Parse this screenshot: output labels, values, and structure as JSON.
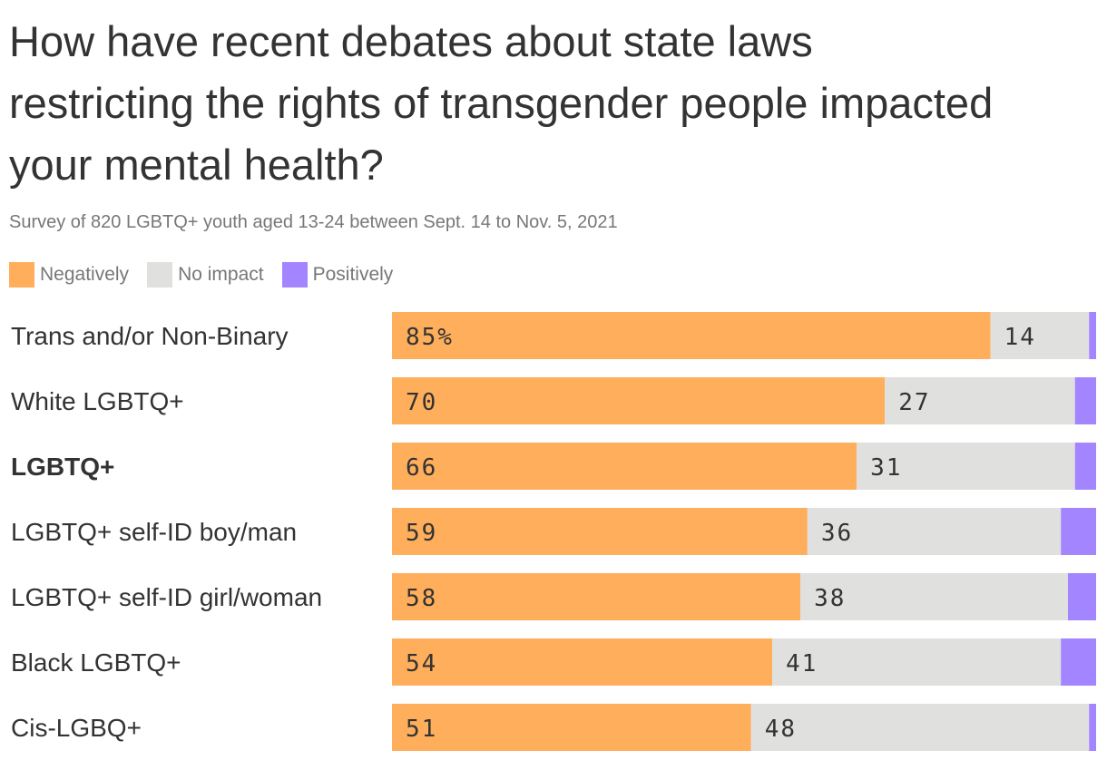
{
  "title": "How have recent debates about state laws restricting the rights of transgender people impacted your mental health?",
  "subtitle": "Survey of 820 LGBTQ+ youth aged 13-24 between Sept. 14 to Nov. 5, 2021",
  "legend": [
    {
      "label": "Negatively",
      "color": "#FFAE5C"
    },
    {
      "label": "No impact",
      "color": "#E0E0DF"
    },
    {
      "label": "Positively",
      "color": "#A385FF"
    }
  ],
  "chart_data": {
    "type": "bar",
    "orientation": "horizontal",
    "stacked": true,
    "categories": [
      "Trans and/or Non-Binary",
      "White LGBTQ+",
      "LGBTQ+",
      "LGBTQ+ self-ID boy/man",
      "LGBTQ+ self-ID girl/woman",
      "Black LGBTQ+",
      "Cis-LGBQ+"
    ],
    "bold_categories": [
      "LGBTQ+"
    ],
    "series": [
      {
        "name": "Negatively",
        "color": "#FFAE5C",
        "values": [
          85,
          70,
          66,
          59,
          58,
          54,
          51
        ],
        "labels": [
          "85%",
          "70",
          "66",
          "59",
          "58",
          "54",
          "51"
        ]
      },
      {
        "name": "No impact",
        "color": "#E0E0DF",
        "values": [
          14,
          27,
          31,
          36,
          38,
          41,
          48
        ],
        "labels": [
          "14",
          "27",
          "31",
          "36",
          "38",
          "41",
          "48"
        ]
      },
      {
        "name": "Positively",
        "color": "#A385FF",
        "values": [
          1,
          3,
          3,
          5,
          4,
          5,
          1
        ],
        "labels": [
          "",
          "",
          "",
          "",
          "",
          "",
          ""
        ]
      }
    ],
    "xlim": [
      0,
      100
    ],
    "grid": false,
    "legend_position": "top-left"
  }
}
